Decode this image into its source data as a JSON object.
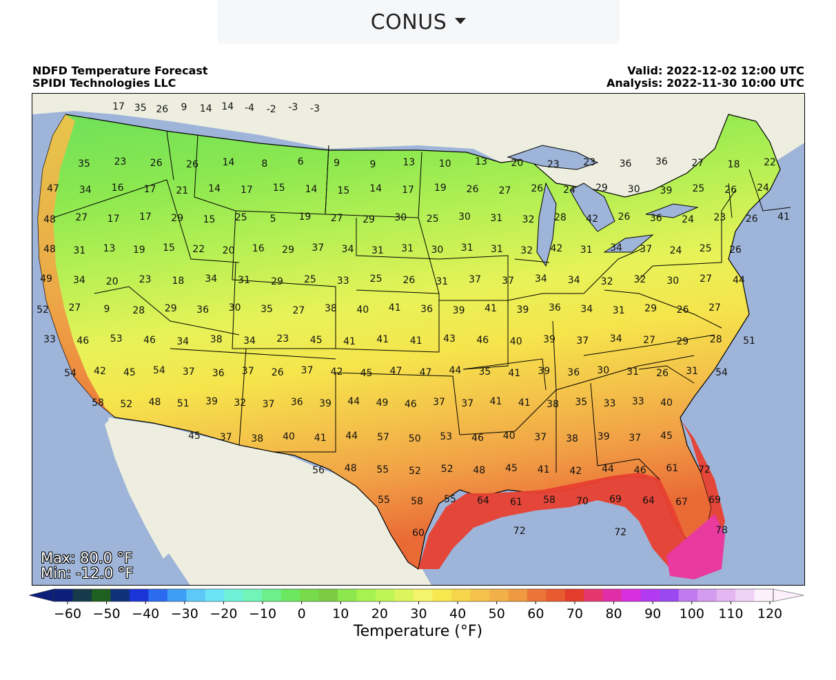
{
  "region_selector": {
    "label": "CONUS"
  },
  "header": {
    "title": "NDFD Temperature Forecast",
    "org": "SPIDI Technologies LLC",
    "valid": "Valid: 2022-12-02 12:00 UTC",
    "analysis": "Analysis: 2022-11-30 10:00 UTC"
  },
  "stats": {
    "max": "Max: 80.0 °F",
    "min": "Min: -12.0 °F"
  },
  "colors": {
    "ocean": "#9eb4d8",
    "land": "#eeeee0",
    "cold": "#5cd65c",
    "mild": "#f6f346",
    "warm": "#f4a83c",
    "hot": "#e83c2c",
    "very_hot": "#e93aa0"
  },
  "colorbar": {
    "title": "Temperature (°F)",
    "ticks": [
      "−60",
      "−50",
      "−40",
      "−30",
      "−20",
      "−10",
      "0",
      "10",
      "20",
      "30",
      "40",
      "50",
      "60",
      "70",
      "80",
      "90",
      "100",
      "110",
      "120"
    ],
    "colors": [
      "#0a1e7a",
      "#153a4a",
      "#1f5f1f",
      "#10307a",
      "#1a34d8",
      "#2b6bf0",
      "#3c9ef5",
      "#5cc9f8",
      "#6de3f8",
      "#6ff1d8",
      "#72f3b8",
      "#6cef8c",
      "#6ce860",
      "#78dc4a",
      "#7ecb42",
      "#8de84e",
      "#a6f250",
      "#c0f556",
      "#dcf55c",
      "#f5f36a",
      "#f8e850",
      "#f6d64a",
      "#f4c24a",
      "#f1b148",
      "#ef9a40",
      "#ec7436",
      "#e85a30",
      "#e43c2c",
      "#e63670",
      "#e02ea8",
      "#d830e0",
      "#b23af0",
      "#9a48f0",
      "#c27af0",
      "#d49cf0",
      "#e4b6f2",
      "#f0d2f6",
      "#fbf0fb"
    ]
  },
  "temperature_labels": [
    "17",
    "35",
    "26",
    "9",
    "14",
    "14",
    "-4",
    "-2",
    "-3",
    "-3",
    "35",
    "23",
    "26",
    "26",
    "14",
    "8",
    "6",
    "9",
    "9",
    "13",
    "10",
    "13",
    "20",
    "23",
    "23",
    "36",
    "36",
    "27",
    "18",
    "22",
    "47",
    "34",
    "16",
    "17",
    "21",
    "14",
    "17",
    "15",
    "14",
    "15",
    "14",
    "17",
    "19",
    "26",
    "27",
    "26",
    "24",
    "29",
    "30",
    "39",
    "25",
    "26",
    "24",
    "48",
    "27",
    "17",
    "17",
    "29",
    "15",
    "25",
    "5",
    "19",
    "27",
    "29",
    "30",
    "25",
    "30",
    "31",
    "32",
    "28",
    "42",
    "26",
    "36",
    "24",
    "23",
    "26",
    "41",
    "48",
    "31",
    "13",
    "19",
    "15",
    "22",
    "20",
    "16",
    "29",
    "37",
    "34",
    "31",
    "31",
    "30",
    "31",
    "31",
    "32",
    "42",
    "31",
    "34",
    "37",
    "24",
    "25",
    "26",
    "49",
    "34",
    "20",
    "23",
    "18",
    "34",
    "31",
    "29",
    "25",
    "33",
    "25",
    "26",
    "31",
    "37",
    "37",
    "34",
    "34",
    "32",
    "32",
    "30",
    "27",
    "44",
    "52",
    "27",
    "9",
    "28",
    "29",
    "36",
    "30",
    "35",
    "27",
    "38",
    "40",
    "41",
    "36",
    "39",
    "41",
    "39",
    "36",
    "34",
    "31",
    "29",
    "26",
    "27",
    "33",
    "46",
    "53",
    "46",
    "34",
    "38",
    "34",
    "23",
    "45",
    "41",
    "41",
    "41",
    "43",
    "46",
    "40",
    "39",
    "37",
    "34",
    "27",
    "29",
    "28",
    "51",
    "54",
    "42",
    "45",
    "54",
    "37",
    "36",
    "37",
    "26",
    "37",
    "42",
    "45",
    "47",
    "47",
    "44",
    "35",
    "41",
    "39",
    "36",
    "30",
    "31",
    "26",
    "31",
    "54",
    "58",
    "52",
    "48",
    "51",
    "39",
    "32",
    "37",
    "36",
    "39",
    "44",
    "49",
    "46",
    "37",
    "37",
    "41",
    "41",
    "38",
    "35",
    "33",
    "33",
    "40",
    "45",
    "37",
    "38",
    "40",
    "41",
    "44",
    "57",
    "50",
    "53",
    "46",
    "40",
    "37",
    "38",
    "39",
    "37",
    "45",
    "56",
    "48",
    "55",
    "52",
    "52",
    "48",
    "45",
    "41",
    "42",
    "44",
    "46",
    "61",
    "72",
    "55",
    "58",
    "55",
    "64",
    "61",
    "58",
    "70",
    "69",
    "64",
    "67",
    "69",
    "60",
    "72",
    "72",
    "78"
  ]
}
